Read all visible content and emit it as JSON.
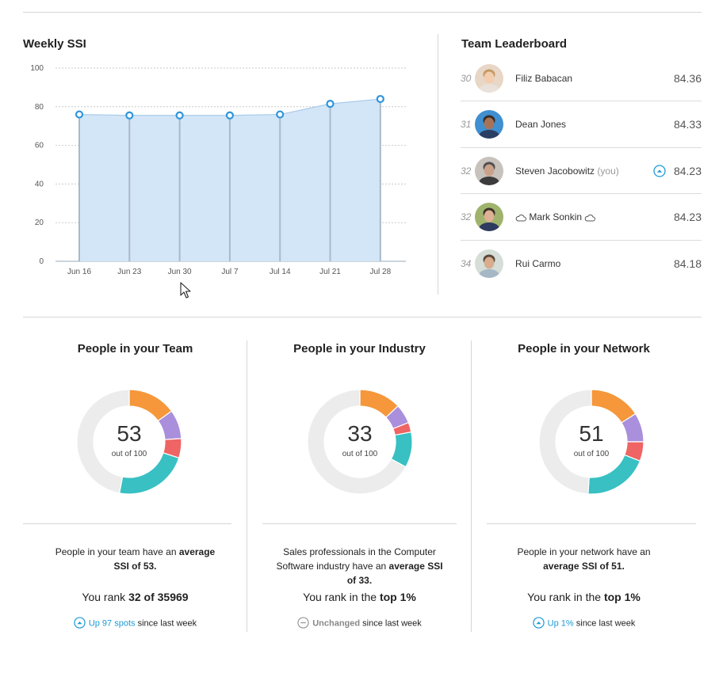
{
  "weekly_ssi": {
    "title": "Weekly SSI"
  },
  "chart_data": {
    "type": "area",
    "categories": [
      "Jun 16",
      "Jun 23",
      "Jun 30",
      "Jul 7",
      "Jul 14",
      "Jul 21",
      "Jul 28"
    ],
    "values": [
      76,
      75.5,
      75.5,
      75.5,
      76,
      81.5,
      84
    ],
    "ylim": [
      0,
      100
    ],
    "yticks": [
      0,
      20,
      40,
      60,
      80,
      100
    ],
    "grid": true,
    "colors": {
      "fill": "#d3e6f7",
      "line": "#a8cbea",
      "marker": "#2f95dc",
      "stem": "#a9b9c8"
    }
  },
  "leaderboard": {
    "title": "Team Leaderboard",
    "rows": [
      {
        "rank": "30",
        "name": "Filiz Babacan",
        "you": "",
        "score": "84.36",
        "up": false,
        "cloud": false
      },
      {
        "rank": "31",
        "name": "Dean Jones",
        "you": "",
        "score": "84.33",
        "up": false,
        "cloud": false
      },
      {
        "rank": "32",
        "name": "Steven Jacobowitz",
        "you": "(you)",
        "score": "84.23",
        "up": true,
        "cloud": false
      },
      {
        "rank": "32",
        "name": "Mark Sonkin",
        "you": "",
        "score": "84.23",
        "up": false,
        "cloud": true
      },
      {
        "rank": "34",
        "name": "Rui Carmo",
        "you": "",
        "score": "84.18",
        "up": false,
        "cloud": false
      }
    ]
  },
  "panels": [
    {
      "title": "People in your Team",
      "score": "53",
      "out_of": "out of 100",
      "desc_pre": "People in your team have an ",
      "desc_bold": "average SSI of 53.",
      "desc_post": "",
      "rank_pre": "You rank ",
      "rank_bold": "32 of 35969",
      "change_value": "Up 97 spots",
      "change_suffix": " since last week",
      "change_kind": "up",
      "segments": [
        15,
        9,
        6,
        23
      ]
    },
    {
      "title": "People in your Industry",
      "score": "33",
      "out_of": "out of 100",
      "desc_pre": "Sales professionals in the Computer Software industry have an ",
      "desc_bold": "average SSI of 33.",
      "desc_post": "",
      "rank_pre": "You rank in the ",
      "rank_bold": "top 1%",
      "change_value": "Unchanged",
      "change_suffix": " since last week",
      "change_kind": "same",
      "segments": [
        13,
        6,
        3,
        11
      ]
    },
    {
      "title": "People in your Network",
      "score": "51",
      "out_of": "out of 100",
      "desc_pre": "People in your network have an ",
      "desc_bold": "average SSI of 51.",
      "desc_post": "",
      "rank_pre": "You rank in the ",
      "rank_bold": "top 1%",
      "change_value": "Up 1%",
      "change_suffix": " since last week",
      "change_kind": "up",
      "segments": [
        16,
        9,
        6,
        20
      ]
    }
  ],
  "donut_colors": [
    "#f5973a",
    "#a98fdc",
    "#ef6464",
    "#38c0c3",
    "#ececec"
  ]
}
